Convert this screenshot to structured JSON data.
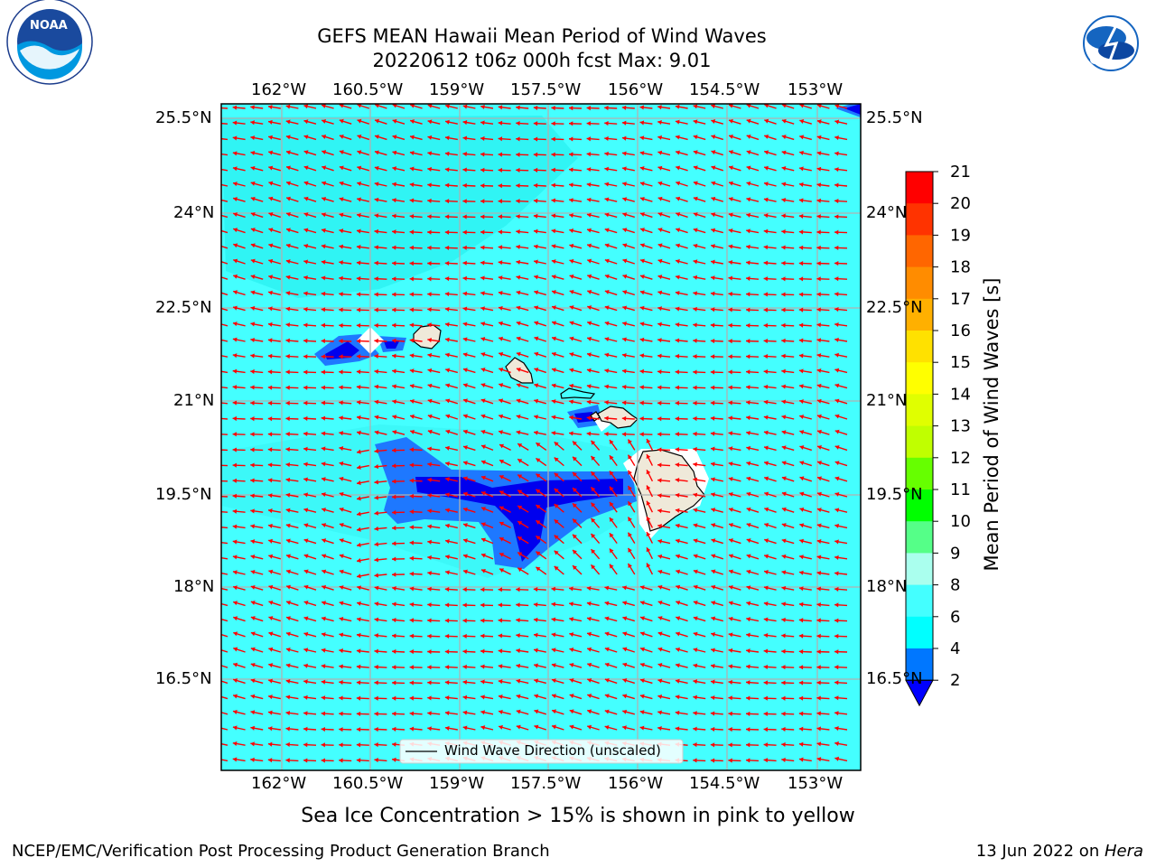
{
  "title": {
    "line1": "GEFS MEAN Hawaii Mean Period of Wind Waves",
    "line2": "20220612 t06z 000h fcst   Max: 9.01"
  },
  "logos": {
    "left": "NOAA",
    "left_ring_text": "NATIONAL OCEANIC AND ATMOSPHERIC ADMINISTRATION · U.S. DEPARTMENT OF COMMERCE",
    "right_ring_text": "NATIONAL WEATHER SERVICE"
  },
  "map": {
    "lon_ticks": [
      "162°W",
      "160.5°W",
      "159°W",
      "157.5°W",
      "156°W",
      "154.5°W",
      "153°W"
    ],
    "lat_ticks": [
      "25.5°N",
      "24°N",
      "22.5°N",
      "21°N",
      "19.5°N",
      "18°N",
      "16.5°N"
    ],
    "legend_label": "Wind Wave Direction (unscaled)",
    "arrow_color": "#ff0000",
    "background_color": "#44ffff"
  },
  "colorbar": {
    "label": "Mean Period of Wind Waves [s]",
    "ticks": [
      "21",
      "20",
      "19",
      "18",
      "17",
      "16",
      "15",
      "14",
      "13",
      "12",
      "11",
      "10",
      "9",
      "8",
      "6",
      "4",
      "2"
    ],
    "colors": [
      "#ff0000",
      "#ff3300",
      "#ff6600",
      "#ff8c00",
      "#ffb000",
      "#ffe100",
      "#ffff00",
      "#e0ff00",
      "#c0ff00",
      "#66ff00",
      "#00ff00",
      "#55ff88",
      "#aaffee",
      "#44ffff",
      "#00ffff",
      "#0077ff",
      "#0000ff"
    ]
  },
  "caption": "Sea Ice Concentration > 15% is shown in pink to yellow",
  "footer": {
    "left": "NCEP/EMC/Verification Post Processing Product Generation Branch",
    "right_date": "13 Jun 2022 on ",
    "right_host": "Hera"
  }
}
